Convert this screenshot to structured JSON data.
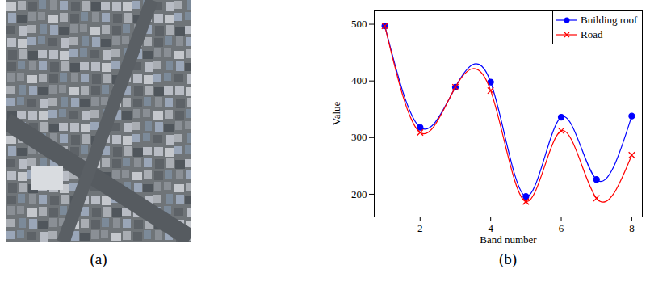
{
  "image": {
    "caption": "(a)"
  },
  "chart_data": {
    "type": "line",
    "caption": "(b)",
    "x_label": "Band number",
    "y_label": "Value",
    "x": [
      1,
      2,
      3,
      4,
      5,
      6,
      7,
      8
    ],
    "series": [
      {
        "name": "Building roof",
        "color": "#0000ff",
        "marker": "circle",
        "line_style": "solid",
        "values": [
          497,
          318,
          389,
          398,
          196,
          336,
          226,
          338
        ]
      },
      {
        "name": "Road",
        "color": "#ff0000",
        "marker": "x",
        "line_style": "solid",
        "values": [
          497,
          309,
          389,
          383,
          187,
          312,
          193,
          269
        ]
      }
    ],
    "xlim": [
      0.7,
      8.3
    ],
    "xticks": [
      2,
      4,
      6,
      8
    ],
    "ylim": [
      160,
      525
    ],
    "yticks": [
      200,
      300,
      400,
      500
    ],
    "grid": false,
    "legend": "top-right"
  }
}
